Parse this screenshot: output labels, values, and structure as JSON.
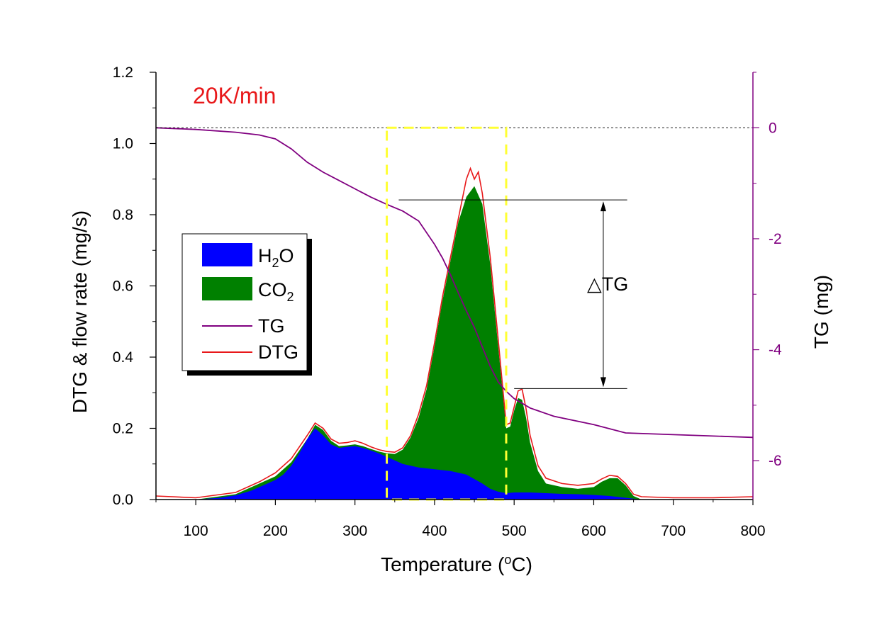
{
  "chart_data": {
    "type": "area",
    "annotation": "20K/min",
    "xlabel": "Temperature",
    "xlabel_unit_sup": "o",
    "xlabel_unit": "C",
    "ylabel": "DTG & flow rate (mg/s)",
    "y2label": "TG (mg)",
    "xlim": [
      50,
      800
    ],
    "ylim": [
      0,
      1.2
    ],
    "y2lim": [
      -6.7,
      1.0
    ],
    "xticks": [
      "100",
      "200",
      "300",
      "400",
      "500",
      "600",
      "700",
      "800"
    ],
    "yticks": [
      "0.0",
      "0.2",
      "0.4",
      "0.6",
      "0.8",
      "1.0",
      "1.2"
    ],
    "y2ticks": [
      "0",
      "-2",
      "-4",
      "-6"
    ],
    "delta_label": "△TG",
    "delta_tg_range": [
      -1.3,
      -4.7
    ],
    "highlight_x_range": [
      340,
      490
    ],
    "tg_zero_reference": 0,
    "legend": [
      {
        "name": "H",
        "sub": "2",
        "suffix": "O",
        "color": "#0000ff",
        "style": "area"
      },
      {
        "name": "CO",
        "sub": "2",
        "suffix": "",
        "color": "#008000",
        "style": "area"
      },
      {
        "name": "TG",
        "sub": "",
        "suffix": "",
        "color": "#800080",
        "style": "line"
      },
      {
        "name": "DTG",
        "sub": "",
        "suffix": "",
        "color": "#e8181a",
        "style": "line"
      }
    ],
    "series": [
      {
        "name": "H2O",
        "axis": "left",
        "x": [
          50,
          100,
          130,
          150,
          170,
          190,
          200,
          210,
          220,
          230,
          240,
          250,
          260,
          270,
          280,
          290,
          300,
          310,
          320,
          330,
          340,
          350,
          360,
          380,
          400,
          420,
          440,
          460,
          470,
          480,
          490,
          500,
          520,
          540,
          560,
          580,
          600,
          620,
          640,
          660,
          700,
          750,
          800
        ],
        "values": [
          0.0,
          0.0,
          0.005,
          0.012,
          0.025,
          0.045,
          0.055,
          0.07,
          0.095,
          0.13,
          0.17,
          0.2,
          0.18,
          0.155,
          0.145,
          0.148,
          0.15,
          0.145,
          0.138,
          0.13,
          0.12,
          0.11,
          0.1,
          0.09,
          0.085,
          0.08,
          0.07,
          0.045,
          0.03,
          0.022,
          0.018,
          0.02,
          0.02,
          0.018,
          0.016,
          0.015,
          0.013,
          0.01,
          0.005,
          0.0,
          0.0,
          0.0,
          0.0
        ]
      },
      {
        "name": "CO2",
        "axis": "left",
        "x": [
          50,
          100,
          150,
          180,
          200,
          220,
          240,
          250,
          260,
          270,
          280,
          290,
          300,
          310,
          320,
          330,
          340,
          350,
          360,
          370,
          380,
          390,
          400,
          410,
          420,
          430,
          440,
          450,
          460,
          470,
          480,
          490,
          495,
          500,
          505,
          510,
          515,
          520,
          530,
          540,
          560,
          580,
          600,
          610,
          620,
          630,
          640,
          650,
          660,
          700,
          750,
          800
        ],
        "values": [
          0.0,
          0.0,
          0.015,
          0.045,
          0.065,
          0.105,
          0.17,
          0.21,
          0.195,
          0.165,
          0.15,
          0.152,
          0.155,
          0.15,
          0.142,
          0.135,
          0.13,
          0.128,
          0.14,
          0.175,
          0.23,
          0.31,
          0.43,
          0.56,
          0.67,
          0.78,
          0.85,
          0.88,
          0.83,
          0.66,
          0.43,
          0.2,
          0.205,
          0.25,
          0.285,
          0.28,
          0.23,
          0.16,
          0.08,
          0.045,
          0.035,
          0.03,
          0.035,
          0.05,
          0.06,
          0.06,
          0.04,
          0.01,
          0.0,
          0.0,
          0.0,
          0.0
        ]
      },
      {
        "name": "DTG",
        "axis": "left",
        "x": [
          50,
          100,
          150,
          180,
          200,
          220,
          240,
          250,
          260,
          270,
          280,
          290,
          300,
          310,
          320,
          330,
          340,
          350,
          360,
          370,
          380,
          390,
          400,
          410,
          420,
          430,
          440,
          445,
          450,
          455,
          460,
          470,
          480,
          490,
          495,
          500,
          505,
          510,
          515,
          520,
          530,
          540,
          560,
          580,
          600,
          610,
          620,
          630,
          640,
          650,
          660,
          700,
          750,
          800
        ],
        "values": [
          0.01,
          0.005,
          0.02,
          0.05,
          0.075,
          0.115,
          0.18,
          0.215,
          0.2,
          0.17,
          0.158,
          0.16,
          0.165,
          0.158,
          0.148,
          0.14,
          0.135,
          0.133,
          0.145,
          0.18,
          0.24,
          0.32,
          0.44,
          0.57,
          0.68,
          0.79,
          0.9,
          0.93,
          0.9,
          0.92,
          0.86,
          0.68,
          0.45,
          0.21,
          0.215,
          0.26,
          0.305,
          0.31,
          0.255,
          0.18,
          0.095,
          0.06,
          0.045,
          0.04,
          0.045,
          0.058,
          0.068,
          0.065,
          0.045,
          0.015,
          0.008,
          0.005,
          0.005,
          0.008
        ]
      },
      {
        "name": "TG",
        "axis": "right",
        "x": [
          50,
          100,
          150,
          180,
          200,
          220,
          240,
          260,
          280,
          300,
          320,
          340,
          360,
          380,
          400,
          410,
          420,
          430,
          440,
          450,
          460,
          470,
          480,
          490,
          500,
          520,
          550,
          600,
          640,
          700,
          800
        ],
        "values": [
          0.0,
          -0.03,
          -0.08,
          -0.13,
          -0.2,
          -0.38,
          -0.62,
          -0.8,
          -0.95,
          -1.1,
          -1.25,
          -1.38,
          -1.5,
          -1.68,
          -2.1,
          -2.35,
          -2.65,
          -2.98,
          -3.3,
          -3.6,
          -3.95,
          -4.3,
          -4.58,
          -4.75,
          -4.88,
          -5.05,
          -5.2,
          -5.35,
          -5.5,
          -5.53,
          -5.58
        ]
      }
    ]
  }
}
